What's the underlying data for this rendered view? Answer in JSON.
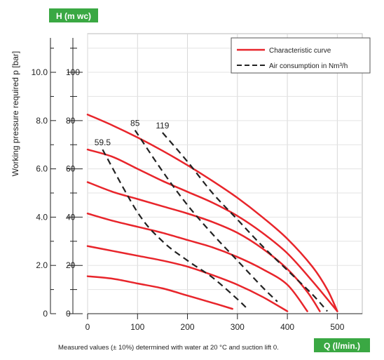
{
  "chart_data": {
    "type": "line",
    "x_label": "Q (l/min.)",
    "y_label_right": "H (m wc)",
    "y_label_left": "Working pressure required p [bar]",
    "footnote": "Measured values (± 10%) determined with water at 20 °C and suction lift 0.",
    "xlim": [
      0,
      550
    ],
    "ylim": [
      0,
      11.6
    ],
    "x_ticks": [
      "0",
      "100",
      "200",
      "300",
      "400",
      "500"
    ],
    "x_tick_values": [
      0,
      100,
      200,
      300,
      400,
      500
    ],
    "y_ticks_left": [
      "0",
      "2.0",
      "4.0",
      "6.0",
      "8.0",
      "10.0"
    ],
    "y_ticks_right": [
      "0",
      "20",
      "40",
      "60",
      "80",
      "100"
    ],
    "y_tick_values": [
      0,
      2,
      4,
      6,
      8,
      10
    ],
    "grid": true,
    "legend": {
      "placement": "top-right",
      "entries": [
        {
          "label": "Characteristic curve",
          "style": "solid",
          "color": "#e8252b"
        },
        {
          "label": "Air consumption in Nm³/h",
          "style": "dashed",
          "color": "#222222"
        }
      ]
    },
    "series": [
      {
        "style": "solid",
        "color": "#e8252b",
        "points": [
          [
            0,
            1.55
          ],
          [
            50,
            1.45
          ],
          [
            100,
            1.25
          ],
          [
            150,
            1.05
          ],
          [
            200,
            0.75
          ],
          [
            250,
            0.45
          ],
          [
            290,
            0.2
          ]
        ]
      },
      {
        "style": "solid",
        "color": "#e8252b",
        "points": [
          [
            0,
            2.8
          ],
          [
            50,
            2.6
          ],
          [
            100,
            2.4
          ],
          [
            150,
            2.2
          ],
          [
            200,
            1.95
          ],
          [
            250,
            1.6
          ],
          [
            300,
            1.2
          ],
          [
            350,
            0.7
          ],
          [
            400,
            0.1
          ]
        ]
      },
      {
        "style": "solid",
        "color": "#e8252b",
        "points": [
          [
            0,
            4.15
          ],
          [
            50,
            3.85
          ],
          [
            100,
            3.6
          ],
          [
            150,
            3.35
          ],
          [
            200,
            3.05
          ],
          [
            250,
            2.75
          ],
          [
            300,
            2.35
          ],
          [
            350,
            1.85
          ],
          [
            400,
            1.2
          ],
          [
            440,
            0.1
          ]
        ]
      },
      {
        "style": "solid",
        "color": "#e8252b",
        "points": [
          [
            0,
            5.45
          ],
          [
            50,
            5.05
          ],
          [
            100,
            4.75
          ],
          [
            150,
            4.45
          ],
          [
            200,
            4.15
          ],
          [
            250,
            3.8
          ],
          [
            300,
            3.35
          ],
          [
            350,
            2.7
          ],
          [
            400,
            1.85
          ],
          [
            440,
            0.9
          ],
          [
            465,
            0.1
          ]
        ]
      },
      {
        "style": "solid",
        "color": "#e8252b",
        "points": [
          [
            0,
            6.8
          ],
          [
            50,
            6.5
          ],
          [
            100,
            6.0
          ],
          [
            150,
            5.5
          ],
          [
            200,
            5.05
          ],
          [
            250,
            4.6
          ],
          [
            300,
            4.05
          ],
          [
            350,
            3.35
          ],
          [
            400,
            2.5
          ],
          [
            450,
            1.35
          ],
          [
            500,
            0.1
          ]
        ]
      },
      {
        "style": "solid",
        "color": "#e8252b",
        "points": [
          [
            0,
            8.25
          ],
          [
            50,
            7.8
          ],
          [
            100,
            7.3
          ],
          [
            150,
            6.75
          ],
          [
            200,
            6.15
          ],
          [
            250,
            5.5
          ],
          [
            300,
            4.8
          ],
          [
            350,
            4.0
          ],
          [
            400,
            3.1
          ],
          [
            450,
            1.95
          ],
          [
            480,
            1.0
          ],
          [
            500,
            0.1
          ]
        ]
      }
    ],
    "air_consumption": [
      {
        "label": "59.5",
        "points": [
          [
            30,
            6.8
          ],
          [
            100,
            4.2
          ],
          [
            150,
            3.0
          ],
          [
            200,
            2.2
          ],
          [
            250,
            1.5
          ],
          [
            300,
            0.6
          ],
          [
            320,
            0.2
          ]
        ]
      },
      {
        "label": "85",
        "points": [
          [
            95,
            7.6
          ],
          [
            150,
            5.9
          ],
          [
            200,
            4.5
          ],
          [
            250,
            3.3
          ],
          [
            300,
            2.2
          ],
          [
            350,
            1.1
          ],
          [
            380,
            0.5
          ]
        ]
      },
      {
        "label": "119",
        "points": [
          [
            150,
            7.5
          ],
          [
            200,
            6.3
          ],
          [
            250,
            5.0
          ],
          [
            300,
            3.9
          ],
          [
            350,
            2.8
          ],
          [
            400,
            1.8
          ],
          [
            450,
            0.8
          ],
          [
            480,
            0.1
          ]
        ]
      }
    ]
  }
}
